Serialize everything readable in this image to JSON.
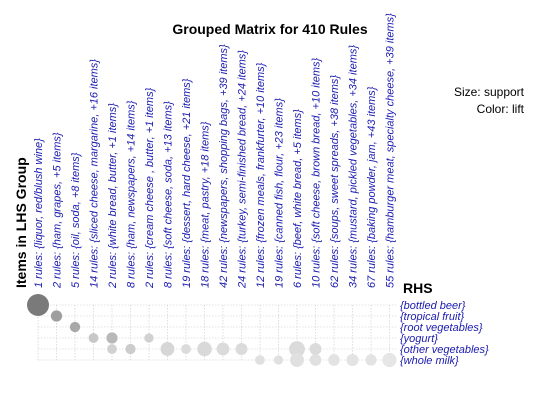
{
  "chart_data": {
    "type": "grouped-matrix",
    "title": "Grouped Matrix for 410 Rules",
    "legend": {
      "size": "Size: support",
      "color": "Color: lift"
    },
    "ylabel": "Items in LHS Group",
    "rhs_label": "RHS",
    "lhs_groups": [
      "1 rules: {liquor, red/blush wine}",
      "2 rules: {ham, grapes, +5 items}",
      "5 rules: {oil, soda, +8 items}",
      "14 rules: {sliced cheese, margarine, +16 items}",
      "2 rules: {white bread, butter, +1 items}",
      "8 rules: {ham, newspapers, +14 items}",
      "2 rules: {cream cheese , butter, +1 items}",
      "8 rules: {soft cheese, soda, +13 items}",
      "19 rules: {dessert, hard cheese, +21 items}",
      "18 rules: {meat, pastry, +18 items}",
      "42 rules: {newspapers, shopping bags, +39 items}",
      "24 rules: {turkey, semi-finished bread, +24 items}",
      "12 rules: {frozen meals, frankfurter, +10 items}",
      "19 rules: {canned fish, flour, +23 items}",
      "6 rules: {beef, white bread, +5 items}",
      "10 rules: {soft cheese, brown bread, +10 items}",
      "62 rules: {soups, sweet spreads, +38 items}",
      "34 rules: {mustard, pickled vegetables, +34 items}",
      "67 rules: {baking powder, jam, +43 items}",
      "55 rules: {hamburger meat, specialty cheese, +39 items}"
    ],
    "rhs_items": [
      "{bottled beer}",
      "{tropical fruit}",
      "{root vegetables}",
      "{yogurt}",
      "{other vegetables}",
      "{whole milk}"
    ],
    "points": [
      {
        "lhs": 0,
        "rhs": 0,
        "size": 1.0,
        "shade": 0.48
      },
      {
        "lhs": 1,
        "rhs": 1,
        "size": 0.26,
        "shade": 0.62
      },
      {
        "lhs": 2,
        "rhs": 2,
        "size": 0.22,
        "shade": 0.66
      },
      {
        "lhs": 3,
        "rhs": 3,
        "size": 0.2,
        "shade": 0.78
      },
      {
        "lhs": 4,
        "rhs": 3,
        "size": 0.26,
        "shade": 0.72
      },
      {
        "lhs": 4,
        "rhs": 4,
        "size": 0.2,
        "shade": 0.82
      },
      {
        "lhs": 5,
        "rhs": 4,
        "size": 0.22,
        "shade": 0.8
      },
      {
        "lhs": 6,
        "rhs": 3,
        "size": 0.18,
        "shade": 0.82
      },
      {
        "lhs": 7,
        "rhs": 4,
        "size": 0.4,
        "shade": 0.84
      },
      {
        "lhs": 8,
        "rhs": 4,
        "size": 0.2,
        "shade": 0.86
      },
      {
        "lhs": 9,
        "rhs": 4,
        "size": 0.44,
        "shade": 0.85
      },
      {
        "lhs": 10,
        "rhs": 4,
        "size": 0.34,
        "shade": 0.86
      },
      {
        "lhs": 11,
        "rhs": 4,
        "size": 0.3,
        "shade": 0.86
      },
      {
        "lhs": 12,
        "rhs": 5,
        "size": 0.2,
        "shade": 0.88
      },
      {
        "lhs": 13,
        "rhs": 5,
        "size": 0.18,
        "shade": 0.88
      },
      {
        "lhs": 14,
        "rhs": 4,
        "size": 0.52,
        "shade": 0.86
      },
      {
        "lhs": 14,
        "rhs": 5,
        "size": 0.4,
        "shade": 0.88
      },
      {
        "lhs": 15,
        "rhs": 4,
        "size": 0.3,
        "shade": 0.86
      },
      {
        "lhs": 15,
        "rhs": 5,
        "size": 0.28,
        "shade": 0.88
      },
      {
        "lhs": 16,
        "rhs": 5,
        "size": 0.28,
        "shade": 0.89
      },
      {
        "lhs": 17,
        "rhs": 5,
        "size": 0.3,
        "shade": 0.89
      },
      {
        "lhs": 18,
        "rhs": 5,
        "size": 0.26,
        "shade": 0.89
      },
      {
        "lhs": 19,
        "rhs": 5,
        "size": 0.42,
        "shade": 0.9
      }
    ]
  }
}
